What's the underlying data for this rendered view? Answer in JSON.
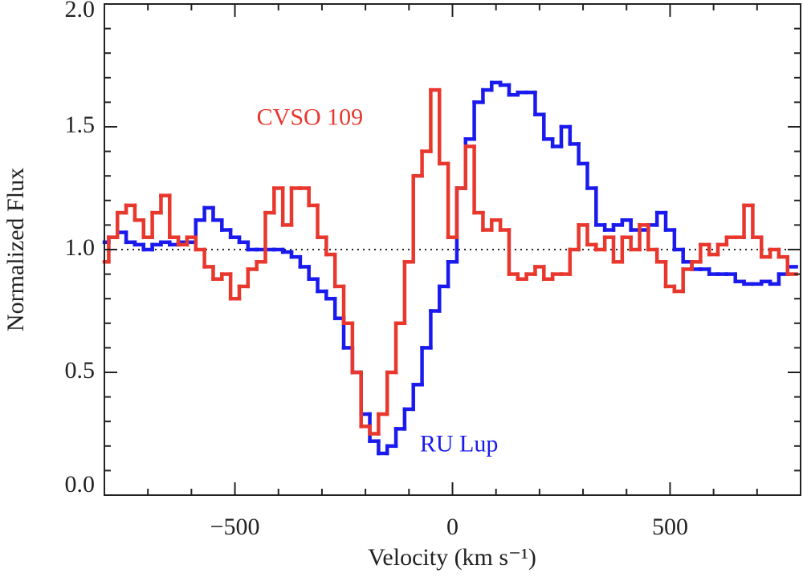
{
  "chart_data": {
    "type": "step",
    "xlabel": "Velocity (km s⁻¹)",
    "ylabel": "Normalized Flux",
    "xlim": [
      -800,
      800
    ],
    "ylim": [
      0,
      2
    ],
    "xticks": [
      {
        "value": -500,
        "label": "−500"
      },
      0,
      500
    ],
    "yticks": [
      {
        "value": 0,
        "label": "0.0"
      },
      {
        "value": 0.5,
        "label": "0.5"
      },
      {
        "value": 1,
        "label": "1.0"
      },
      {
        "value": 1.5,
        "label": "1.5"
      },
      {
        "value": 2,
        "label": "2.0"
      }
    ],
    "x_minor_ticks": [
      -700,
      -600,
      -400,
      -300,
      -200,
      -100,
      100,
      200,
      300,
      400,
      600,
      700
    ],
    "y_minor_ticks": [
      0.1,
      0.2,
      0.3,
      0.4,
      0.6,
      0.7,
      0.8,
      0.9,
      1.1,
      1.2,
      1.3,
      1.4,
      1.6,
      1.7,
      1.8,
      1.9
    ],
    "hline": 1,
    "x": [
      -800,
      -780,
      -760,
      -740,
      -720,
      -700,
      -680,
      -660,
      -640,
      -620,
      -600,
      -580,
      -560,
      -540,
      -520,
      -500,
      -480,
      -460,
      -440,
      -420,
      -400,
      -380,
      -360,
      -340,
      -320,
      -300,
      -280,
      -260,
      -240,
      -220,
      -200,
      -180,
      -160,
      -140,
      -120,
      -100,
      -80,
      -60,
      -40,
      -20,
      0,
      20,
      40,
      60,
      80,
      100,
      120,
      140,
      160,
      180,
      200,
      220,
      240,
      260,
      280,
      300,
      320,
      340,
      360,
      380,
      400,
      420,
      440,
      460,
      480,
      500,
      520,
      540,
      560,
      580,
      600,
      620,
      640,
      660,
      680,
      700,
      720,
      740,
      760,
      780
    ],
    "series": [
      {
        "name": "RU Lup",
        "color": "#1a1aef",
        "values": [
          1.03,
          1.05,
          1.07,
          1.03,
          1.02,
          1.0,
          1.02,
          1.03,
          1.02,
          1.03,
          1.03,
          1.12,
          1.17,
          1.12,
          1.08,
          1.05,
          1.03,
          1.0,
          1.0,
          1.0,
          1.0,
          0.99,
          0.97,
          0.93,
          0.88,
          0.83,
          0.8,
          0.72,
          0.6,
          0.5,
          0.33,
          0.22,
          0.17,
          0.2,
          0.27,
          0.35,
          0.45,
          0.6,
          0.75,
          0.85,
          0.95,
          1.25,
          1.45,
          1.6,
          1.65,
          1.68,
          1.67,
          1.63,
          1.64,
          1.64,
          1.55,
          1.45,
          1.42,
          1.5,
          1.43,
          1.35,
          1.25,
          1.1,
          1.08,
          1.1,
          1.12,
          1.08,
          1.08,
          1.1,
          1.15,
          1.08,
          1.0,
          0.95,
          0.92,
          0.92,
          0.9,
          0.9,
          0.9,
          0.87,
          0.86,
          0.86,
          0.87,
          0.86,
          0.9,
          0.93
        ]
      },
      {
        "name": "CVSO 109",
        "color": "#e8382e",
        "values": [
          0.95,
          1.05,
          1.15,
          1.18,
          1.12,
          1.05,
          1.15,
          1.22,
          1.05,
          1.02,
          1.05,
          1.0,
          0.93,
          0.88,
          0.9,
          0.8,
          0.85,
          0.92,
          0.95,
          1.15,
          1.25,
          1.1,
          1.25,
          1.25,
          1.18,
          1.05,
          0.98,
          0.85,
          0.7,
          0.5,
          0.28,
          0.25,
          0.33,
          0.5,
          0.7,
          0.95,
          1.3,
          1.4,
          1.65,
          1.35,
          1.05,
          1.25,
          1.42,
          1.15,
          1.08,
          1.12,
          1.08,
          0.9,
          0.88,
          0.9,
          0.93,
          0.88,
          0.9,
          0.9,
          1.0,
          1.1,
          1.02,
          1.0,
          1.05,
          0.95,
          1.05,
          1.0,
          1.1,
          1.0,
          0.95,
          0.85,
          0.83,
          0.92,
          0.95,
          1.02,
          0.98,
          1.02,
          1.05,
          1.05,
          1.18,
          1.05,
          0.97,
          1.0,
          0.97,
          0.9
        ]
      }
    ],
    "annotations": [
      {
        "text": "CVSO 109",
        "x": -450,
        "y": 1.53,
        "color": "#e8382e"
      },
      {
        "text": "RU Lup",
        "x": -75,
        "y": 0.2,
        "color": "#1a1aef"
      }
    ]
  }
}
